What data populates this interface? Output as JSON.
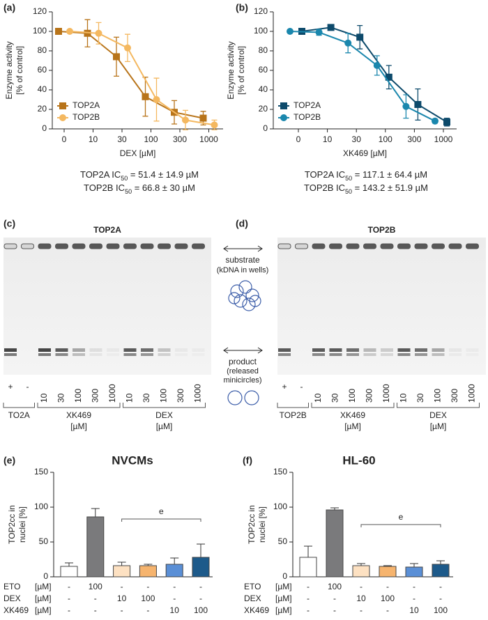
{
  "chart_data": [
    {
      "type": "line",
      "panel": "(a)",
      "ylabel": [
        "Enzyme activity",
        "[% of control]"
      ],
      "xlabel": "DEX [µM]",
      "categories": [
        "0",
        "10",
        "30",
        "100",
        "300",
        "1000"
      ],
      "series": [
        {
          "name": "TOP2A",
          "color": "#b8741a",
          "marker": "square",
          "values": [
            100,
            98,
            74,
            33,
            17,
            11
          ],
          "errors": [
            0,
            14,
            20,
            20,
            12,
            7
          ]
        },
        {
          "name": "TOP2B",
          "color": "#f4b860",
          "marker": "circle",
          "values": [
            100,
            98,
            83,
            30,
            9,
            4
          ],
          "errors": [
            0,
            11,
            14,
            22,
            10,
            5
          ]
        }
      ],
      "ylim": [
        0,
        120
      ],
      "yticks": [
        0,
        20,
        40,
        60,
        80,
        100,
        120
      ],
      "legend": "lower left",
      "annotations": [
        [
          "TOP2A IC",
          "50",
          " = 51.4 ± 14.9 µM"
        ],
        [
          "TOP2B IC",
          "50",
          " = 66.8 ± 30 µM"
        ]
      ]
    },
    {
      "type": "line",
      "panel": "(b)",
      "ylabel": [
        "Enzyme activity",
        "[% of control]"
      ],
      "xlabel": "XK469 [µM]",
      "categories": [
        "0",
        "10",
        "30",
        "100",
        "300",
        "1000"
      ],
      "series": [
        {
          "name": "TOP2A",
          "color": "#0d4a6b",
          "marker": "square",
          "values": [
            100,
            104,
            94,
            53,
            25,
            7
          ],
          "errors": [
            0,
            0,
            12,
            12,
            16,
            4
          ]
        },
        {
          "name": "TOP2B",
          "color": "#1a87ad",
          "marker": "circle",
          "values": [
            100,
            99,
            88,
            65,
            23,
            8
          ],
          "errors": [
            0,
            3,
            10,
            10,
            12,
            2
          ]
        }
      ],
      "ylim": [
        0,
        120
      ],
      "yticks": [
        0,
        20,
        40,
        60,
        80,
        100,
        120
      ],
      "legend": "lower left",
      "annotations": [
        [
          "TOP2A IC",
          "50",
          " = 117.1 ± 64.4 µM"
        ],
        [
          "TOP2B IC",
          "50",
          " = 143.2 ± 51.9 µM"
        ]
      ]
    },
    {
      "type": "bar",
      "panel": "(e)",
      "title": "NVCMs",
      "ylabel": [
        "TOP2cc in",
        "nuclei [%]"
      ],
      "values": [
        15,
        86,
        16,
        16,
        18,
        28
      ],
      "errors": [
        5,
        12,
        5,
        2,
        9,
        19
      ],
      "colors": [
        "#ffffff",
        "#7a7a7c",
        "#fde1c2",
        "#f6b46e",
        "#5a8fd6",
        "#1d5a8a"
      ],
      "ylim": [
        0,
        150
      ],
      "yticks": [
        0,
        50,
        100,
        150
      ],
      "annotation": "e",
      "treatments": [
        {
          "name": "ETO",
          "unit": "[µM]",
          "cells": [
            "-",
            "100",
            "-",
            "-",
            "-",
            "-"
          ]
        },
        {
          "name": "DEX",
          "unit": "[µM]",
          "cells": [
            "-",
            "-",
            "10",
            "100",
            "-",
            "-"
          ]
        },
        {
          "name": "XK469",
          "unit": "[µM]",
          "cells": [
            "-",
            "-",
            "-",
            "-",
            "10",
            "100"
          ]
        }
      ]
    },
    {
      "type": "bar",
      "panel": "(f)",
      "title": "HL-60",
      "ylabel": [
        "TOP2cc in",
        "nuclei [%]"
      ],
      "values": [
        28,
        96,
        16,
        15,
        14,
        18
      ],
      "errors": [
        16,
        3,
        3,
        1,
        5,
        5
      ],
      "colors": [
        "#ffffff",
        "#7a7a7c",
        "#fde1c2",
        "#f6b46e",
        "#5a8fd6",
        "#1d5a8a"
      ],
      "ylim": [
        0,
        150
      ],
      "yticks": [
        0,
        50,
        100,
        150
      ],
      "annotation": "e",
      "treatments": [
        {
          "name": "ETO",
          "unit": "[µM]",
          "cells": [
            "-",
            "100",
            "-",
            "-",
            "-",
            "-"
          ]
        },
        {
          "name": "DEX",
          "unit": "[µM]",
          "cells": [
            "-",
            "-",
            "10",
            "100",
            "-",
            "-"
          ]
        },
        {
          "name": "XK469",
          "unit": "[µM]",
          "cells": [
            "-",
            "-",
            "-",
            "-",
            "10",
            "100"
          ]
        }
      ]
    }
  ],
  "gels": [
    {
      "panel": "(c)",
      "title": "TOP2A",
      "lanes": [
        "+",
        "-",
        "10",
        "30",
        "100",
        "300",
        "1000",
        "10",
        "30",
        "100",
        "300",
        "1000"
      ],
      "groups": [
        [
          "TO2A"
        ],
        [
          "XK469",
          "[µM]"
        ],
        [
          "DEX",
          "[µM]"
        ]
      ]
    },
    {
      "panel": "(d)",
      "title": "TOP2B",
      "lanes": [
        "+",
        "-",
        "10",
        "30",
        "100",
        "300",
        "1000",
        "10",
        "30",
        "100",
        "300",
        "1000"
      ],
      "groups": [
        [
          "TOP2B"
        ],
        [
          "XK469",
          "[µM]"
        ],
        [
          "DEX",
          "[µM]"
        ]
      ]
    }
  ],
  "legend": {
    "substrate": [
      "substrate",
      "(kDNA in wells)"
    ],
    "product": [
      "product",
      "(released",
      "minicircles)"
    ]
  }
}
